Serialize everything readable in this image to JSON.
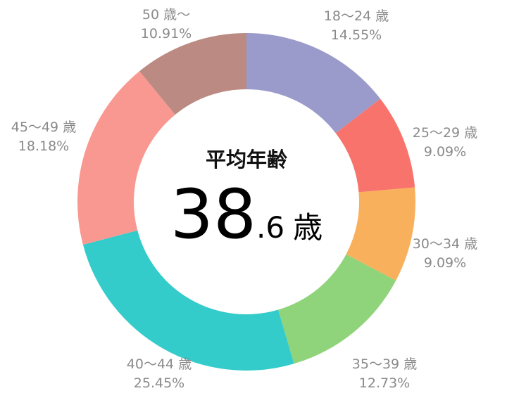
{
  "chart_data": {
    "type": "pie",
    "donut": true,
    "center_title": "平均年齢",
    "center_value_int": "38",
    "center_value_dec": ".6",
    "center_unit": "歳",
    "slices": [
      {
        "label": "18〜24 歳",
        "value": 14.55,
        "percent_text": "14.55%",
        "color": "#9a9acb"
      },
      {
        "label": "25〜29 歳",
        "value": 9.09,
        "percent_text": "9.09%",
        "color": "#f8736c"
      },
      {
        "label": "30〜34 歳",
        "value": 9.09,
        "percent_text": "9.09%",
        "color": "#f9b05c"
      },
      {
        "label": "35〜39 歳",
        "value": 12.73,
        "percent_text": "12.73%",
        "color": "#8fd47a"
      },
      {
        "label": "40〜44 歳",
        "value": 25.45,
        "percent_text": "25.45%",
        "color": "#34cbcb"
      },
      {
        "label": "45〜49 歳",
        "value": 18.18,
        "percent_text": "18.18%",
        "color": "#f99890"
      },
      {
        "label": "50 歳〜",
        "value": 10.91,
        "percent_text": "10.91%",
        "color": "#bb8a83"
      }
    ]
  }
}
